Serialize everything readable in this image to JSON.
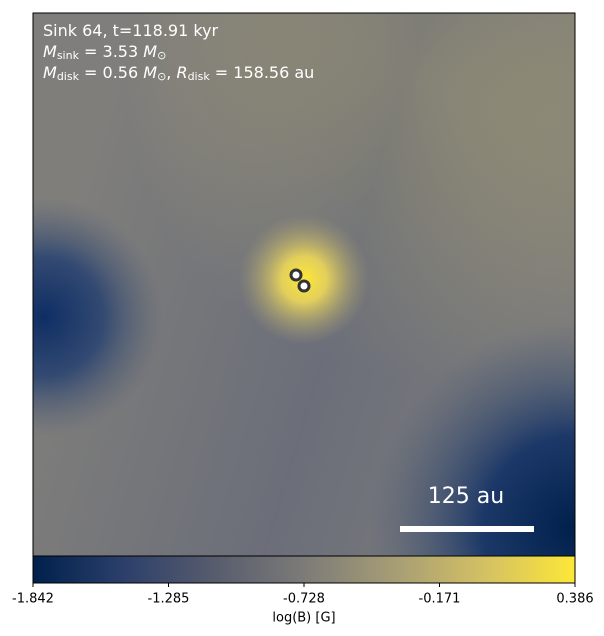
{
  "chart_data": {
    "type": "colorbar",
    "annotations": [
      [
        {
          "text": "Sink 64, t=118.91 kyr"
        }
      ],
      [
        {
          "text": "M",
          "italic": true
        },
        {
          "text": "sink",
          "sub": true
        },
        {
          "text": " = 3.53 "
        },
        {
          "text": "M",
          "italic": true
        },
        {
          "text": "⊙",
          "sub": true
        }
      ],
      [
        {
          "text": "M",
          "italic": true
        },
        {
          "text": "disk",
          "sub": true
        },
        {
          "text": " = 0.56 "
        },
        {
          "text": "M",
          "italic": true
        },
        {
          "text": "⊙",
          "sub": true
        },
        {
          "text": ", "
        },
        {
          "text": "R",
          "italic": true
        },
        {
          "text": "disk",
          "sub": true
        },
        {
          "text": " = 158.56 au"
        }
      ]
    ],
    "scale_bar_label": "125 au",
    "colorbar_label": "log(B) [G]",
    "clim": [
      -1.842,
      0.386
    ],
    "cticks": [
      -1.842,
      -1.285,
      -0.728,
      -0.171,
      0.386
    ],
    "colormap": [
      "#00204c",
      "#2c3f6b",
      "#575c6d",
      "#7c7b78",
      "#a69d75",
      "#d3c164",
      "#fde737"
    ]
  }
}
